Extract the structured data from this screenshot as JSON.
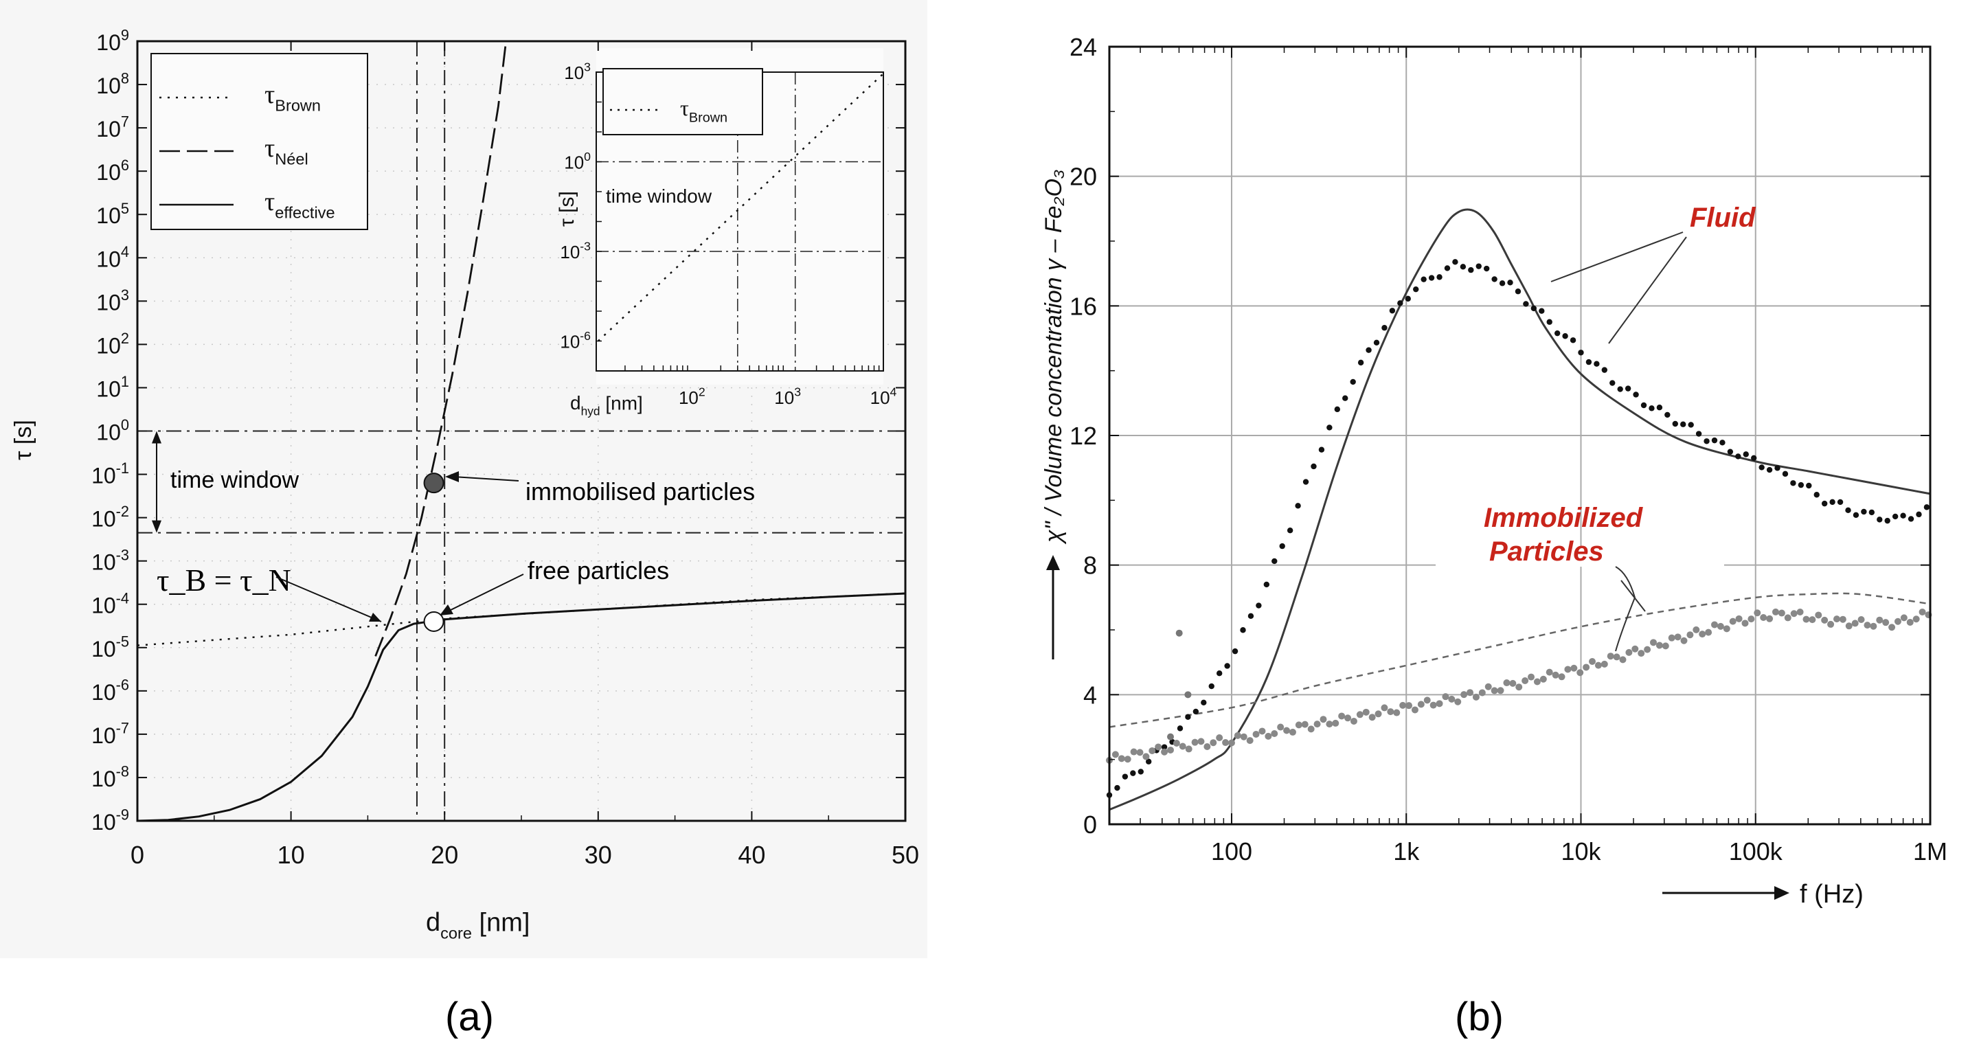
{
  "chart_data": [
    {
      "panel": "(a)",
      "type": "line",
      "xlabel_main": "d",
      "xlabel_sub": "core",
      "xlabel_unit": " [nm]",
      "ylabel": "τ [s]",
      "xlim": [
        0,
        50
      ],
      "ylim_log10": [
        -9,
        9
      ],
      "x_ticks": [
        "0",
        "10",
        "20",
        "30",
        "40",
        "50"
      ],
      "y_ticks": [
        "10^9",
        "10^8",
        "10^7",
        "10^6",
        "10^5",
        "10^4",
        "10^3",
        "10^2",
        "10^1",
        "10^0",
        "10^-1",
        "10^-2",
        "10^-3",
        "10^-4",
        "10^-5",
        "10^-6",
        "10^-7",
        "10^-8",
        "10^-9"
      ],
      "legend": [
        {
          "sym": "τ",
          "sub": "Brown",
          "style": "dotted"
        },
        {
          "sym": "τ",
          "sub": "Néel",
          "style": "dashed"
        },
        {
          "sym": "τ",
          "sub": "effective",
          "style": "solid"
        }
      ],
      "series": [
        {
          "name": "τ_Brown",
          "x": [
            0,
            10,
            20,
            30,
            40,
            50
          ],
          "log10_y": [
            -4.95,
            -4.7,
            -4.33,
            -4.12,
            -3.9,
            -3.75
          ]
        },
        {
          "name": "τ_Néel",
          "x": [
            15.5,
            16.5,
            17.5,
            18.5,
            19.5,
            20.5,
            21.5,
            22.5,
            23.5,
            24.0
          ],
          "log10_y": [
            -5.2,
            -4.3,
            -3.3,
            -2.0,
            -0.4,
            1.3,
            3.2,
            5.3,
            7.5,
            9.0
          ]
        },
        {
          "name": "τ_effective",
          "x": [
            0,
            2,
            4,
            6,
            8,
            10,
            12,
            14,
            15,
            16,
            17,
            18,
            19,
            20,
            25,
            30,
            35,
            40,
            45,
            50
          ],
          "log10_y": [
            -9.0,
            -8.98,
            -8.9,
            -8.75,
            -8.5,
            -8.1,
            -7.5,
            -6.6,
            -5.9,
            -5.05,
            -4.6,
            -4.45,
            -4.4,
            -4.35,
            -4.22,
            -4.12,
            -4.02,
            -3.92,
            -3.83,
            -3.75
          ]
        }
      ],
      "vlines_x": [
        18.2,
        20.0
      ],
      "time_window_log10": [
        -2.35,
        0
      ],
      "points": [
        {
          "label": "immobilised particles",
          "x": 19.3,
          "log10_y": -1.2,
          "filled": true
        },
        {
          "label": "free particles",
          "x": 19.3,
          "log10_y": -4.4,
          "filled": false
        }
      ],
      "annotations": {
        "time_window": "time window",
        "equality": "τ_B = τ_N"
      },
      "inset": {
        "ylabel": "τ [s]",
        "xlabel_main": "d",
        "xlabel_sub": "hyd",
        "xlabel_unit": " [nm]",
        "x_ticks": [
          "10^2",
          "10^3",
          "10^4"
        ],
        "y_ticks": [
          "10^3",
          "10^0",
          "10^-3",
          "10^-6"
        ],
        "xlim_log10": [
          1,
          4
        ],
        "ylim_log10": [
          -7,
          3
        ],
        "legend": {
          "sym": "τ",
          "sub": "Brown"
        },
        "time_window_label": "time window",
        "series": {
          "name": "τ_Brown",
          "log10_x": [
            1.02,
            4.0
          ],
          "log10_y": [
            -6.0,
            2.95
          ]
        }
      }
    },
    {
      "panel": "(b)",
      "type": "line",
      "xlabel": "f (Hz)",
      "ylabel": "χ\" / Volume concentration γ – Fe₂O₃",
      "xlim_log10": [
        1.3,
        6
      ],
      "ylim": [
        0,
        24
      ],
      "x_ticks": [
        "100",
        "1k",
        "10k",
        "100k",
        "1M"
      ],
      "y_ticks": [
        "0",
        "4",
        "8",
        "12",
        "16",
        "20",
        "24"
      ],
      "annotations": {
        "fluid": "Fluid",
        "immobilized_line1": "Immobilized",
        "immobilized_line2": "Particles"
      },
      "series": [
        {
          "name": "Fluid (solid)",
          "log10_x": [
            1.3,
            1.5,
            1.7,
            1.9,
            2.0,
            2.2,
            2.4,
            2.6,
            2.8,
            3.0,
            3.2,
            3.3,
            3.4,
            3.5,
            3.6,
            3.7,
            3.8,
            4.0,
            4.3,
            4.6,
            5.0,
            5.3,
            5.6,
            6.0
          ],
          "values": [
            0.45,
            0.9,
            1.4,
            2.0,
            2.5,
            4.5,
            7.6,
            11.0,
            14.0,
            16.4,
            18.3,
            18.9,
            18.9,
            18.3,
            17.3,
            16.3,
            15.3,
            13.9,
            12.7,
            11.8,
            11.2,
            10.9,
            10.6,
            10.2
          ]
        },
        {
          "name": "Fluid (dots)",
          "log10_x": [
            1.3,
            1.45,
            1.6,
            1.75,
            1.9,
            2.0,
            2.15,
            2.3,
            2.5,
            2.7,
            2.9,
            3.0,
            3.15,
            3.3,
            3.45,
            3.6,
            3.8,
            4.0,
            4.2,
            4.4,
            4.6,
            4.8,
            5.0,
            5.2,
            5.4,
            5.6,
            5.8,
            6.0
          ],
          "values": [
            1.0,
            1.6,
            2.3,
            3.2,
            4.3,
            5.2,
            6.8,
            8.7,
            11.5,
            13.8,
            15.6,
            16.3,
            16.9,
            17.3,
            17.1,
            16.6,
            15.6,
            14.6,
            13.6,
            12.9,
            12.3,
            11.7,
            11.2,
            10.7,
            10.0,
            9.6,
            9.4,
            9.7
          ]
        },
        {
          "name": "Immobilized (dashed)",
          "log10_x": [
            1.3,
            2.0,
            2.5,
            3.0,
            3.5,
            4.0,
            4.5,
            5.0,
            5.3,
            5.6,
            6.0
          ],
          "values": [
            3.0,
            3.6,
            4.3,
            4.9,
            5.5,
            6.1,
            6.6,
            7.0,
            7.1,
            7.1,
            6.8
          ]
        },
        {
          "name": "Immobilized (dots)",
          "log10_x": [
            1.3,
            1.5,
            1.7,
            2.0,
            2.3,
            2.6,
            3.0,
            3.3,
            3.6,
            4.0,
            4.3,
            4.6,
            5.0,
            5.2,
            5.4,
            5.6,
            5.8,
            6.0
          ],
          "values": [
            2.0,
            2.2,
            2.4,
            2.6,
            2.9,
            3.2,
            3.6,
            3.9,
            4.3,
            4.8,
            5.3,
            5.8,
            6.4,
            6.5,
            6.3,
            6.2,
            6.2,
            6.5
          ]
        }
      ],
      "outliers": [
        {
          "log10_x": 1.7,
          "value": 5.9
        },
        {
          "log10_x": 1.75,
          "value": 4.0
        },
        {
          "log10_x": 1.65,
          "value": 2.7
        }
      ]
    }
  ],
  "captions": {
    "a": "(a)",
    "b": "(b)"
  }
}
